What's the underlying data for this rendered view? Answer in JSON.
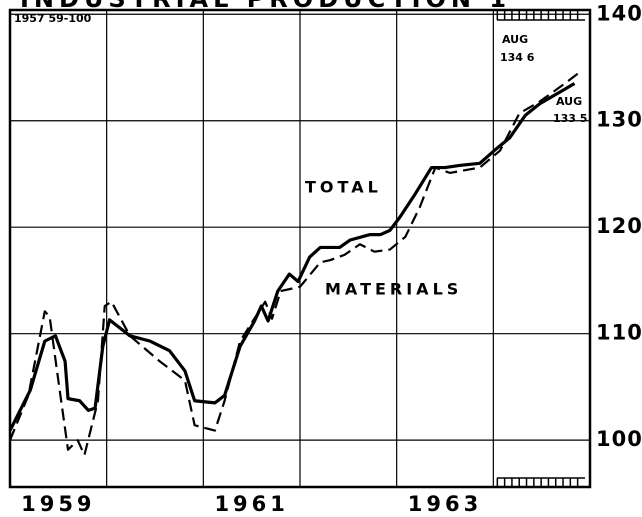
{
  "chart_data": {
    "type": "line",
    "title": "INDUSTRIAL PRODUCTION 1",
    "subtitle": "1957 59-100",
    "xlim": [
      1959,
      1965
    ],
    "xticks": [
      {
        "value": 1959.5,
        "label": "1959"
      },
      {
        "value": 1961.5,
        "label": "1961"
      },
      {
        "value": 1963.5,
        "label": "1963"
      }
    ],
    "xgrid": [
      1960,
      1961,
      1962,
      1963,
      1964
    ],
    "ylim": [
      95.6,
      140.4
    ],
    "yticks": [
      100,
      110,
      120,
      130,
      140
    ],
    "grid": true,
    "series": [
      {
        "name": "TOTAL",
        "color": "#000000",
        "style": "solid",
        "x": [
          1959.0,
          1959.21,
          1959.36,
          1959.47,
          1959.57,
          1959.6,
          1959.72,
          1959.81,
          1959.88,
          1959.96,
          1960.03,
          1960.24,
          1960.45,
          1960.65,
          1960.81,
          1960.91,
          1961.12,
          1961.22,
          1961.38,
          1961.53,
          1961.6,
          1961.67,
          1961.77,
          1961.89,
          1961.98,
          1962.1,
          1962.21,
          1962.41,
          1962.52,
          1962.72,
          1962.83,
          1962.93,
          1963.03,
          1963.19,
          1963.36,
          1963.5,
          1963.65,
          1963.86,
          1964.01,
          1964.17,
          1964.33,
          1964.48,
          1964.69,
          1964.84
        ],
        "values": [
          100.9,
          104.7,
          109.3,
          109.8,
          107.4,
          103.9,
          103.7,
          102.8,
          103.0,
          108.8,
          111.3,
          109.8,
          109.3,
          108.4,
          106.5,
          103.7,
          103.5,
          104.2,
          108.8,
          111.2,
          112.6,
          111.2,
          114.0,
          115.6,
          114.9,
          117.2,
          118.1,
          118.1,
          118.8,
          119.3,
          119.3,
          119.7,
          120.9,
          123.1,
          125.6,
          125.6,
          125.8,
          126.0,
          127.2,
          128.4,
          130.5,
          131.6,
          132.7,
          133.5
        ]
      },
      {
        "name": "MATERIALS",
        "color": "#000000",
        "style": "dashed",
        "x": [
          1959.0,
          1959.19,
          1959.36,
          1959.41,
          1959.5,
          1959.6,
          1959.7,
          1959.77,
          1959.91,
          1959.98,
          1960.05,
          1960.24,
          1960.55,
          1960.81,
          1960.91,
          1961.12,
          1961.22,
          1961.38,
          1961.64,
          1961.71,
          1961.8,
          1962.0,
          1962.21,
          1962.31,
          1962.46,
          1962.62,
          1962.77,
          1962.93,
          1963.09,
          1963.24,
          1963.4,
          1963.55,
          1963.86,
          1964.07,
          1964.27,
          1964.48,
          1964.74,
          1964.9
        ],
        "values": [
          100.0,
          104.2,
          112.1,
          111.6,
          105.6,
          99.1,
          100.0,
          98.6,
          103.7,
          112.6,
          113.0,
          109.8,
          107.4,
          105.6,
          101.4,
          100.9,
          103.7,
          109.3,
          113.0,
          111.4,
          114.0,
          114.4,
          116.7,
          116.9,
          117.4,
          118.4,
          117.7,
          117.9,
          119.1,
          121.9,
          125.6,
          125.1,
          125.6,
          127.2,
          130.7,
          131.8,
          133.5,
          134.6
        ]
      }
    ],
    "annotations": [
      {
        "lines": [
          "AUG",
          "134 6"
        ]
      },
      {
        "lines": [
          "AUG",
          "133 5"
        ]
      }
    ]
  }
}
